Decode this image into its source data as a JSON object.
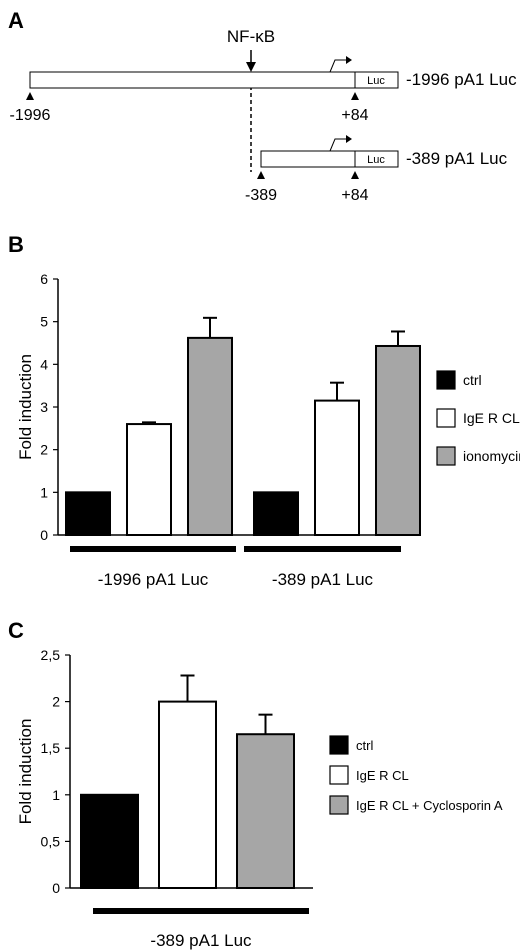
{
  "colors": {
    "ctrl": "#000000",
    "ige": "#ffffff",
    "treat": "#a6a6a6",
    "axis": "#000000"
  },
  "panel_a": {
    "label": "A",
    "nfkb": "NF-κB",
    "constructs": [
      {
        "name": "-1996 pA1 Luc",
        "start_label": "-1996",
        "end_label": "+84",
        "luc": "Luc"
      },
      {
        "name": "-389 pA1 Luc",
        "start_label": "-389",
        "end_label": "+84",
        "luc": "Luc"
      }
    ]
  },
  "chart_data": [
    {
      "panel": "B",
      "type": "bar",
      "ylabel": "Fold induction",
      "ylim": [
        0,
        6
      ],
      "yticks": [
        "0",
        "1",
        "2",
        "3",
        "4",
        "5",
        "6"
      ],
      "groups": [
        "-1996 pA1 Luc",
        "-389 pA1 Luc"
      ],
      "series": [
        {
          "name": "ctrl",
          "values": [
            1.0,
            1.0
          ],
          "errors": [
            0,
            0
          ]
        },
        {
          "name": "IgE R CL",
          "values": [
            2.6,
            3.15
          ],
          "errors": [
            0.04,
            0.42
          ]
        },
        {
          "name": "ionomycin",
          "values": [
            4.62,
            4.43
          ],
          "errors": [
            0.47,
            0.34
          ]
        }
      ],
      "legend_position": "right"
    },
    {
      "panel": "C",
      "type": "bar",
      "ylabel": "Fold induction",
      "ylim": [
        0,
        2.5
      ],
      "yticks": [
        "0",
        "0,5",
        "1",
        "1,5",
        "2",
        "2,5"
      ],
      "groups": [
        "-389 pA1 Luc"
      ],
      "series": [
        {
          "name": "ctrl",
          "values": [
            1.0
          ],
          "errors": [
            0
          ]
        },
        {
          "name": "IgE R CL",
          "values": [
            2.0
          ],
          "errors": [
            0.28
          ]
        },
        {
          "name": "IgE R CL + Cyclosporin A",
          "values": [
            1.65
          ],
          "errors": [
            0.21
          ]
        }
      ],
      "legend_position": "right"
    }
  ]
}
